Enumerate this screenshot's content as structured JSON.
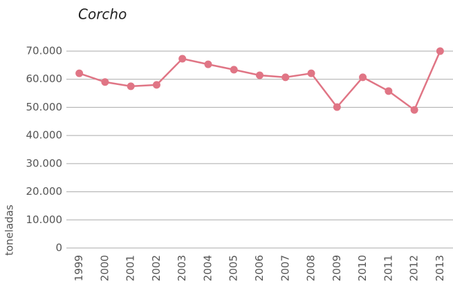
{
  "chart_data": {
    "type": "line",
    "title": "Corcho",
    "y_label": "toneladas",
    "categories": [
      "1999",
      "2000",
      "2001",
      "2002",
      "2003",
      "2004",
      "2005",
      "2006",
      "2007",
      "2008",
      "2009",
      "2010",
      "2011",
      "2012",
      "2013"
    ],
    "series": [
      {
        "name": "Corcho",
        "color": "#e07585",
        "values": [
          62100,
          59000,
          57500,
          58000,
          67300,
          65300,
          63400,
          61400,
          60700,
          62100,
          50100,
          60700,
          55800,
          49100,
          70000
        ]
      }
    ],
    "ylim": [
      0,
      70000
    ],
    "yticks": [
      0,
      {
        "value": 10000,
        "label": "10.000"
      },
      {
        "value": 20000,
        "label": "20.000"
      },
      {
        "value": 30000,
        "label": "30.000"
      },
      {
        "value": 40000,
        "label": "40.000"
      },
      {
        "value": 50000,
        "label": "50.000"
      },
      {
        "value": 60000,
        "label": "60.000"
      },
      {
        "value": 70000,
        "label": "70.000"
      }
    ],
    "grid": true
  }
}
